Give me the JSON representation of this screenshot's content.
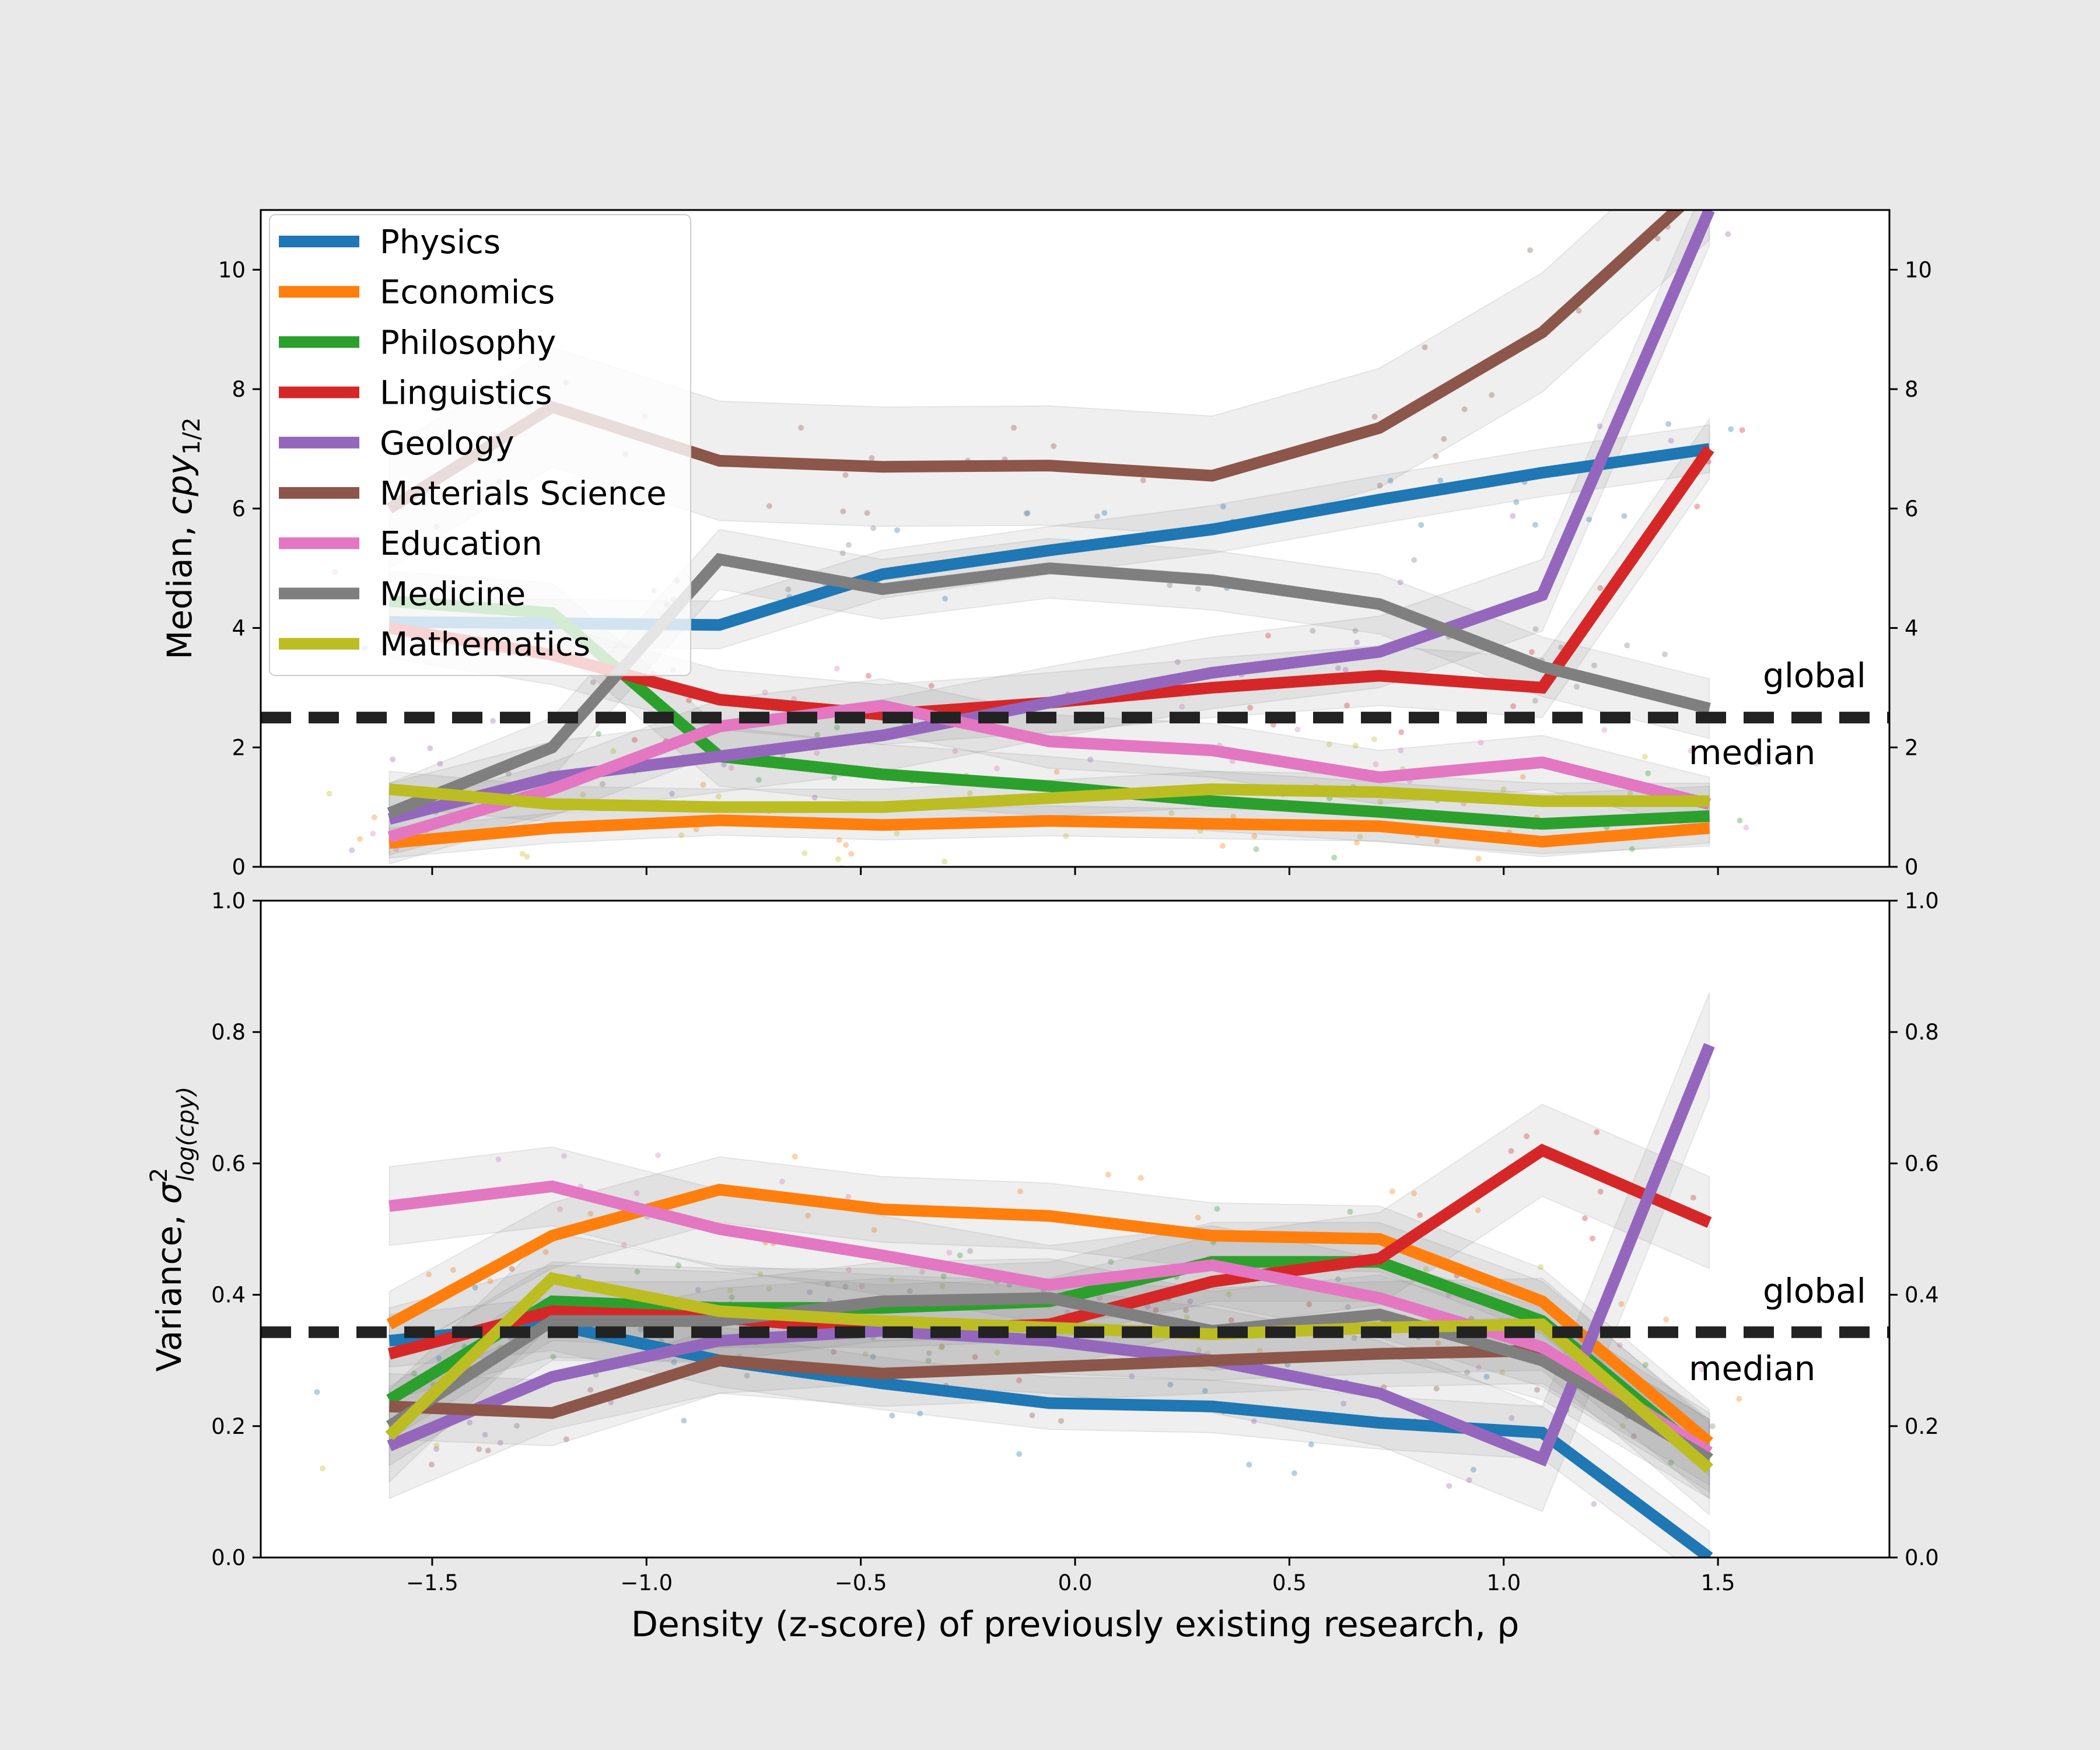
{
  "chart_data": [
    {
      "type": "line",
      "panel": "top",
      "ylabel": "Median, cpy1/2",
      "ylabel_parts": {
        "prefix": "Median, ",
        "symbol": "cpy",
        "subscript": "1/2"
      },
      "ylim": [
        0,
        11
      ],
      "xlim": [
        -1.9,
        1.9
      ],
      "yticks": [
        0,
        2,
        4,
        6,
        8,
        10
      ],
      "ytick_labels": [
        "0",
        "2",
        "4",
        "6",
        "8",
        "10"
      ],
      "xticks": [
        -1.5,
        -1.0,
        -0.5,
        0.0,
        0.5,
        1.0,
        1.5
      ],
      "x": [
        -1.6,
        -1.22,
        -0.83,
        -0.45,
        -0.06,
        0.32,
        0.71,
        1.09,
        1.48
      ],
      "global_median": 2.5,
      "annotation_global": "global",
      "annotation_median": "median",
      "series": [
        {
          "name": "Physics",
          "color": "#1f77b4",
          "values": [
            4.1,
            4.08,
            4.05,
            4.9,
            5.3,
            5.65,
            6.15,
            6.6,
            7.0
          ],
          "ci_width": 0.4
        },
        {
          "name": "Economics",
          "color": "#ff7f0e",
          "values": [
            0.4,
            0.65,
            0.78,
            0.7,
            0.77,
            0.72,
            0.68,
            0.42,
            0.65
          ],
          "ci_width": 0.25
        },
        {
          "name": "Philosophy",
          "color": "#2ca02c",
          "values": [
            4.45,
            4.25,
            1.85,
            1.55,
            1.35,
            1.1,
            0.92,
            0.72,
            0.85
          ],
          "ci_width": 0.5
        },
        {
          "name": "Linguistics",
          "color": "#d62728",
          "values": [
            4.0,
            3.55,
            2.8,
            2.55,
            2.75,
            3.0,
            3.2,
            3.0,
            7.0
          ],
          "ci_width": 0.5
        },
        {
          "name": "Geology",
          "color": "#9467bd",
          "values": [
            0.8,
            1.5,
            1.85,
            2.2,
            2.75,
            3.25,
            3.6,
            4.55,
            11.0
          ],
          "ci_width": 0.6
        },
        {
          "name": "Materials Science",
          "color": "#8c564b",
          "values": [
            6.0,
            7.7,
            6.8,
            6.7,
            6.72,
            6.55,
            7.35,
            8.95,
            11.5
          ],
          "ci_width": 1.0
        },
        {
          "name": "Education",
          "color": "#e377c2",
          "values": [
            0.5,
            1.3,
            2.35,
            2.7,
            2.1,
            1.95,
            1.5,
            1.75,
            1.05
          ],
          "ci_width": 0.45
        },
        {
          "name": "Medicine",
          "color": "#7f7f7f",
          "values": [
            0.9,
            2.0,
            5.15,
            4.65,
            5.0,
            4.8,
            4.4,
            3.35,
            2.65
          ],
          "ci_width": 0.5
        },
        {
          "name": "Mathematics",
          "color": "#bcbd22",
          "values": [
            1.3,
            1.05,
            1.0,
            1.0,
            1.15,
            1.3,
            1.25,
            1.1,
            1.1
          ],
          "ci_width": 0.3
        }
      ]
    },
    {
      "type": "line",
      "panel": "bottom",
      "ylabel": "Variance, σ²log(cpy)",
      "ylabel_parts": {
        "prefix": "Variance, ",
        "symbol": "σ",
        "superscript": "2",
        "subscript": "log(cpy)"
      },
      "xlabel": "Density (z-score) of previously existing research, ρ",
      "ylim": [
        0,
        1.0
      ],
      "xlim": [
        -1.9,
        1.9
      ],
      "yticks": [
        0.0,
        0.2,
        0.4,
        0.6,
        0.8,
        1.0
      ],
      "ytick_labels": [
        "0.0",
        "0.2",
        "0.4",
        "0.6",
        "0.8",
        "1.0"
      ],
      "xticks": [
        -1.5,
        -1.0,
        -0.5,
        0.0,
        0.5,
        1.0,
        1.5
      ],
      "xtick_labels": [
        "−1.5",
        "−1.0",
        "−0.5",
        "0.0",
        "0.5",
        "1.0",
        "1.5"
      ],
      "x": [
        -1.6,
        -1.22,
        -0.83,
        -0.45,
        -0.06,
        0.32,
        0.71,
        1.09,
        1.48
      ],
      "global_median": 0.343,
      "annotation_global": "global",
      "annotation_median": "median",
      "series": [
        {
          "name": "Physics",
          "color": "#1f77b4",
          "values": [
            0.33,
            0.355,
            0.3,
            0.265,
            0.235,
            0.23,
            0.205,
            0.19,
            0.0
          ],
          "ci_width": 0.04
        },
        {
          "name": "Economics",
          "color": "#ff7f0e",
          "values": [
            0.355,
            0.49,
            0.56,
            0.53,
            0.52,
            0.49,
            0.485,
            0.39,
            0.175
          ],
          "ci_width": 0.05
        },
        {
          "name": "Philosophy",
          "color": "#2ca02c",
          "values": [
            0.24,
            0.39,
            0.38,
            0.38,
            0.39,
            0.45,
            0.45,
            0.36,
            0.15
          ],
          "ci_width": 0.06
        },
        {
          "name": "Linguistics",
          "color": "#d62728",
          "values": [
            0.31,
            0.375,
            0.365,
            0.345,
            0.355,
            0.42,
            0.455,
            0.62,
            0.51
          ],
          "ci_width": 0.07
        },
        {
          "name": "Geology",
          "color": "#9467bd",
          "values": [
            0.17,
            0.275,
            0.33,
            0.345,
            0.33,
            0.3,
            0.25,
            0.15,
            0.78
          ],
          "ci_width": 0.08
        },
        {
          "name": "Materials Science",
          "color": "#8c564b",
          "values": [
            0.23,
            0.22,
            0.3,
            0.28,
            0.29,
            0.3,
            0.31,
            0.315,
            0.16
          ],
          "ci_width": 0.05
        },
        {
          "name": "Education",
          "color": "#e377c2",
          "values": [
            0.535,
            0.565,
            0.5,
            0.46,
            0.415,
            0.445,
            0.395,
            0.32,
            0.16
          ],
          "ci_width": 0.06
        },
        {
          "name": "Medicine",
          "color": "#7f7f7f",
          "values": [
            0.2,
            0.36,
            0.36,
            0.39,
            0.395,
            0.345,
            0.37,
            0.3,
            0.15
          ],
          "ci_width": 0.06
        },
        {
          "name": "Mathematics",
          "color": "#bcbd22",
          "values": [
            0.185,
            0.425,
            0.375,
            0.36,
            0.35,
            0.34,
            0.35,
            0.355,
            0.135
          ],
          "ci_width": 0.07
        }
      ]
    }
  ]
}
